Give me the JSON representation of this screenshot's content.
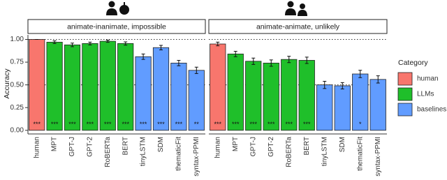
{
  "chart_data": {
    "type": "bar",
    "y_label": "Accuracy",
    "ylim": [
      -0.04,
      1.05
    ],
    "yticks": [
      {
        "value": 0,
        "label": "0.00"
      },
      {
        "value": 0.25,
        "label": "0.25"
      },
      {
        "value": 0.5,
        "label": "0.50"
      },
      {
        "value": 0.75,
        "label": "0.75"
      },
      {
        "value": 1,
        "label": "1.00"
      }
    ],
    "reference_lines": [
      0.5,
      1
    ],
    "legend": {
      "title": "Category",
      "position": "right",
      "entries": [
        {
          "name": "human",
          "color": "#f8766d"
        },
        {
          "name": "LLMs",
          "color": "#1fbf2a"
        },
        {
          "name": "baselines",
          "color": "#619cff"
        }
      ]
    },
    "panels": [
      {
        "title": "animate-inanimate, impossible",
        "categories": [
          "human",
          "MPT",
          "GPT-J",
          "GPT-2",
          "RoBERTa",
          "BERT",
          "tinyLSTM",
          "SDM",
          "thematicFit",
          "syntax-PPMI"
        ],
        "groups": [
          "human",
          "LLMs",
          "LLMs",
          "LLMs",
          "LLMs",
          "LLMs",
          "baselines",
          "baselines",
          "baselines",
          "baselines"
        ],
        "values": [
          1.0,
          0.97,
          0.94,
          0.955,
          0.98,
          0.955,
          0.81,
          0.91,
          0.74,
          0.66
        ],
        "errors": [
          0,
          0.015,
          0.02,
          0.015,
          0.012,
          0.018,
          0.03,
          0.025,
          0.03,
          0.035
        ],
        "significance": [
          "***",
          "***",
          "***",
          "***",
          "***",
          "***",
          "***",
          "***",
          "***",
          "**"
        ]
      },
      {
        "title": "animate-animate, unlikely",
        "categories": [
          "human",
          "MPT",
          "GPT-J",
          "GPT-2",
          "RoBERTa",
          "BERT",
          "tinyLSTM",
          "SDM",
          "thematicFit",
          "syntax-PPMI"
        ],
        "groups": [
          "human",
          "LLMs",
          "LLMs",
          "LLMs",
          "LLMs",
          "LLMs",
          "baselines",
          "baselines",
          "baselines",
          "baselines"
        ],
        "values": [
          0.95,
          0.84,
          0.76,
          0.74,
          0.78,
          0.77,
          0.5,
          0.49,
          0.62,
          0.56
        ],
        "errors": [
          0.02,
          0.03,
          0.035,
          0.035,
          0.035,
          0.035,
          0.04,
          0.035,
          0.04,
          0.04
        ],
        "significance": [
          "***",
          "***",
          "***",
          "***",
          "***",
          "***",
          null,
          null,
          "*",
          null
        ]
      }
    ]
  }
}
